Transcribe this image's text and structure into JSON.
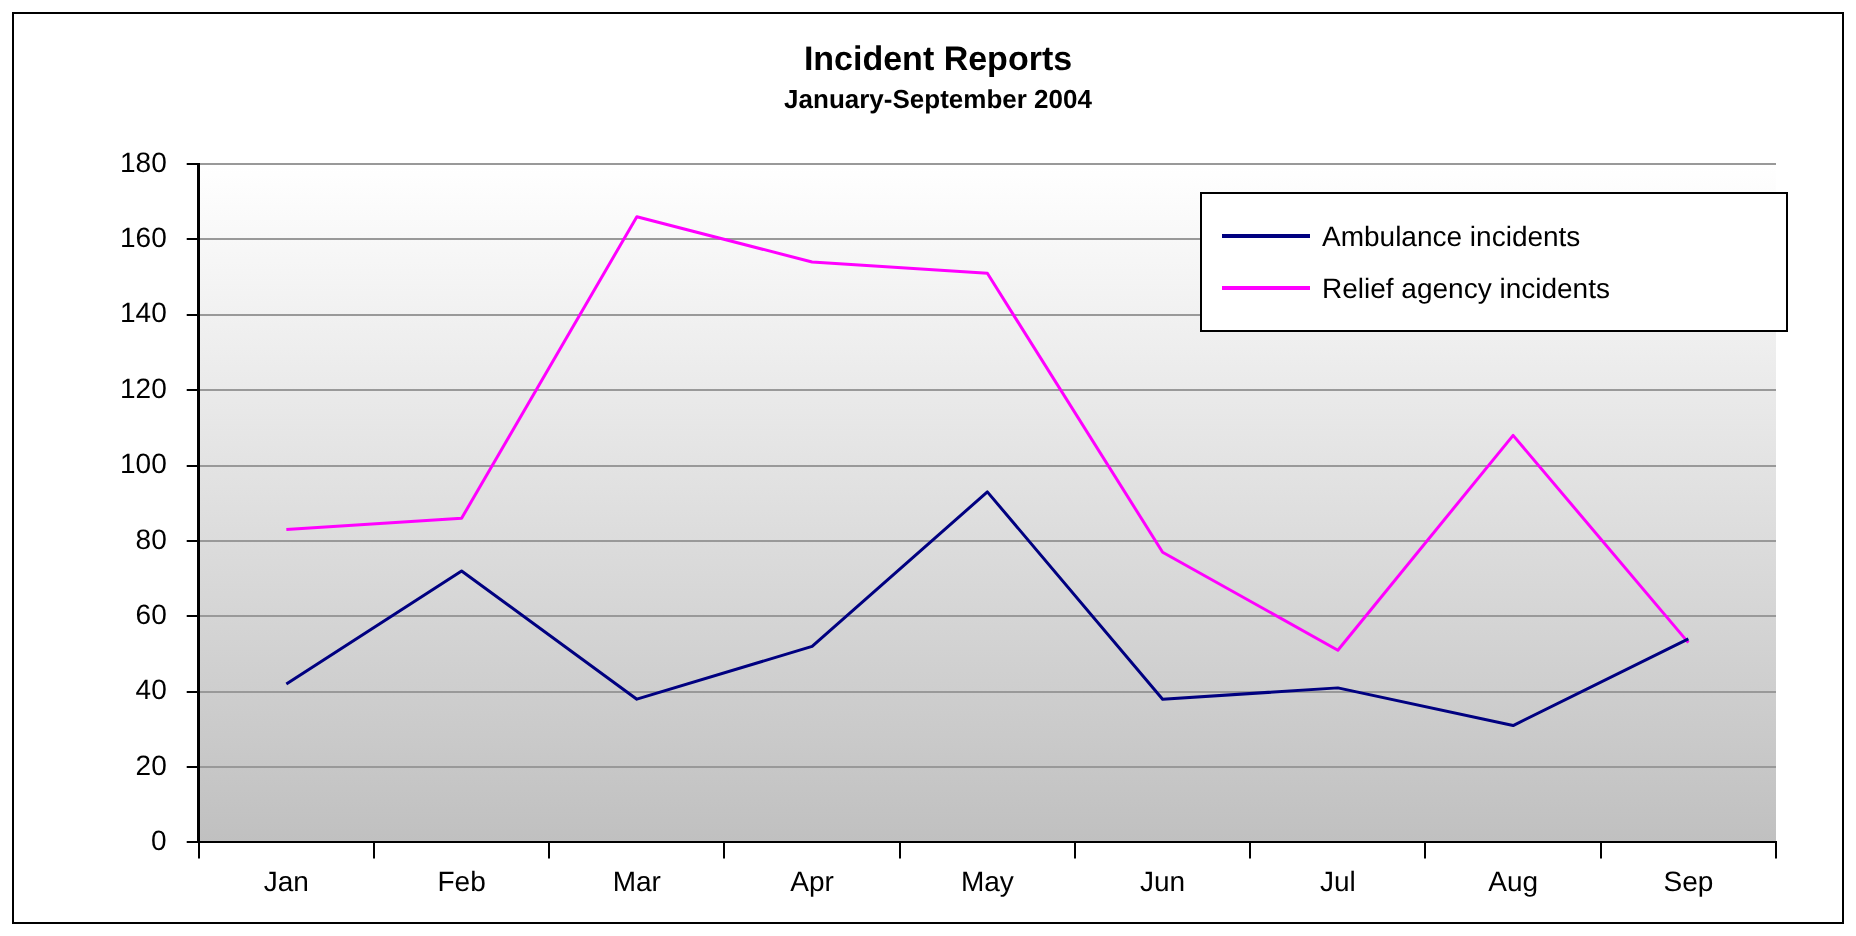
{
  "chart_data": {
    "type": "line",
    "title": "Incident Reports",
    "subtitle": "January-September 2004",
    "categories": [
      "Jan",
      "Feb",
      "Mar",
      "Apr",
      "May",
      "Jun",
      "Jul",
      "Aug",
      "Sep"
    ],
    "series": [
      {
        "name": "Ambulance incidents",
        "color": "#000080",
        "values": [
          42,
          72,
          38,
          52,
          93,
          38,
          41,
          31,
          54
        ]
      },
      {
        "name": "Relief agency incidents",
        "color": "#ff00ff",
        "values": [
          83,
          86,
          166,
          154,
          151,
          77,
          51,
          108,
          53
        ]
      }
    ],
    "ylim": [
      0,
      180
    ],
    "yticks": [
      0,
      20,
      40,
      60,
      80,
      100,
      120,
      140,
      160,
      180
    ],
    "grid": "y",
    "legend": "top right",
    "marker": "none",
    "line_style": "solid"
  }
}
